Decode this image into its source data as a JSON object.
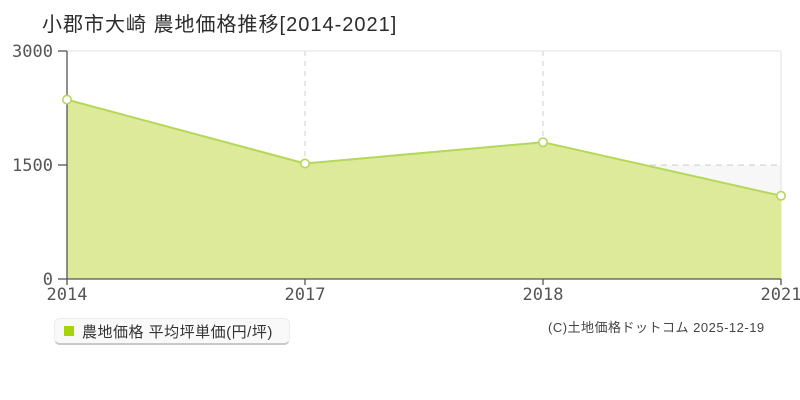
{
  "page": {
    "title": "小郡市大崎 農地価格推移[2014-2021]"
  },
  "legend": {
    "label": "農地価格 平均坪単価(円/坪)",
    "swatch_color": "#a6d40c"
  },
  "footer": {
    "copyright": "(C)土地価格ドットコム 2025-12-19"
  },
  "chart_data": {
    "type": "area",
    "title": "小郡市大崎 農地価格推移[2014-2021]",
    "x": [
      "2014",
      "2017",
      "2018",
      "2021"
    ],
    "series": [
      {
        "name": "農地価格 平均坪単価(円/坪)",
        "values": [
          2360,
          1520,
          1800,
          1095
        ]
      }
    ],
    "xlabel": "",
    "ylabel": "",
    "ylim": [
      0,
      3000
    ],
    "yticks": [
      0,
      1500,
      3000
    ],
    "legend_position": "bottom-left",
    "grid": {
      "y_dashed_values": [
        1500
      ],
      "x_dashed_labels": [
        "2017",
        "2018"
      ],
      "shaded_band_y": [
        0,
        1500
      ]
    },
    "colors": {
      "area_fill": "#dcea9a",
      "line": "#b5d75c",
      "marker_fill": "#ffffff",
      "band": "#f7f7f7",
      "grid": "#cccccc",
      "frame": "#e2e2e2",
      "axis": "#555555",
      "tick_label": "#555555"
    }
  }
}
